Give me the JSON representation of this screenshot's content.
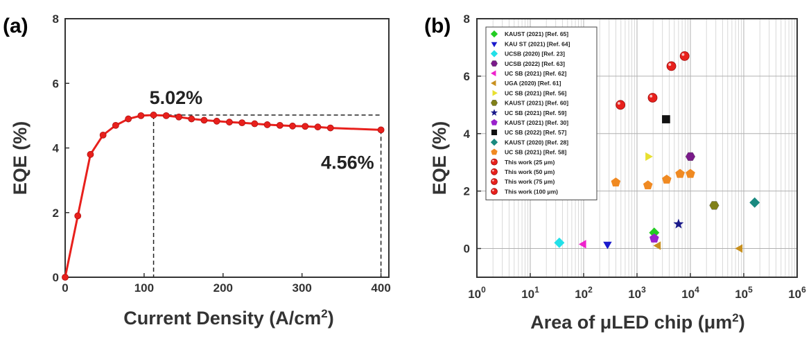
{
  "chart_data": [
    {
      "type": "line",
      "panel_label": "(a)",
      "xlabel": "Current Density (A/cm",
      "xlabel_sup": "2",
      "xlabel_end": ")",
      "ylabel": "EQE (%)",
      "xlim": [
        0,
        410
      ],
      "ylim": [
        0,
        8
      ],
      "xticks": [
        "0",
        "100",
        "200",
        "300",
        "400"
      ],
      "yticks": [
        "0",
        "2",
        "4",
        "6",
        "8"
      ],
      "grid": false,
      "color": "#e8201c",
      "series": [
        {
          "x": [
            0,
            16,
            32,
            48,
            64,
            80,
            96,
            112,
            128,
            144,
            160,
            176,
            192,
            208,
            224,
            240,
            256,
            272,
            288,
            304,
            320,
            336,
            400
          ],
          "y": [
            0.0,
            1.9,
            3.8,
            4.4,
            4.7,
            4.9,
            5.0,
            5.02,
            5.0,
            4.96,
            4.9,
            4.86,
            4.83,
            4.8,
            4.78,
            4.75,
            4.72,
            4.7,
            4.68,
            4.67,
            4.65,
            4.62,
            4.56
          ]
        }
      ],
      "annotations": [
        {
          "text": "5.02%",
          "x": 112,
          "y": 5.02
        },
        {
          "text": "4.56%",
          "x": 400,
          "y": 4.56
        }
      ]
    },
    {
      "type": "scatter",
      "panel_label": "(b)",
      "xlabel": "Area of μLED chip (μm",
      "xlabel_sup": "2",
      "xlabel_end": ")",
      "ylabel": "EQE (%)",
      "xscale": "log",
      "xlim": [
        1,
        1000000
      ],
      "ylim": [
        -1,
        8
      ],
      "xticks": [
        {
          "base": "10",
          "exp": "0"
        },
        {
          "base": "10",
          "exp": "1"
        },
        {
          "base": "10",
          "exp": "2"
        },
        {
          "base": "10",
          "exp": "3"
        },
        {
          "base": "10",
          "exp": "4"
        },
        {
          "base": "10",
          "exp": "5"
        },
        {
          "base": "10",
          "exp": "6"
        }
      ],
      "yticks": [
        "0",
        "2",
        "4",
        "6",
        "8"
      ],
      "grid": true,
      "legend_position": "top-left",
      "series": [
        {
          "name": "KAUST (2021)",
          "ref": "[Ref. 65]",
          "marker": "diamond",
          "color": "#22cc22",
          "points": [
            {
              "x": 2100,
              "y": 0.55
            }
          ]
        },
        {
          "name": "KAU ST (2021)",
          "ref": "[Ref. 64]",
          "marker": "triangle-down",
          "color": "#1a1acc",
          "points": [
            {
              "x": 280,
              "y": 0.15
            }
          ]
        },
        {
          "name": "UCSB (2020)",
          "ref": "[Ref. 23]",
          "marker": "diamond",
          "color": "#22e0e8",
          "points": [
            {
              "x": 35,
              "y": 0.2
            }
          ]
        },
        {
          "name": "UCSB (2022)",
          "ref": "[Ref. 63]",
          "marker": "hexagon",
          "color": "#7a1a8a",
          "points": [
            {
              "x": 10000,
              "y": 3.2
            }
          ]
        },
        {
          "name": "UC SB (2021)",
          "ref": "[Ref. 62]",
          "marker": "triangle-left",
          "color": "#ee22cc",
          "points": [
            {
              "x": 100,
              "y": 0.15
            }
          ]
        },
        {
          "name": "UGA (2020)",
          "ref": "[Ref. 61]",
          "marker": "triangle-left",
          "color": "#c8901e",
          "points": [
            {
              "x": 2500,
              "y": 0.1
            },
            {
              "x": 85000,
              "y": 0.0
            }
          ]
        },
        {
          "name": "UC SB (2021)",
          "ref": "[Ref. 56]",
          "marker": "triangle-right",
          "color": "#e8e030",
          "points": [
            {
              "x": 1600,
              "y": 3.2
            }
          ]
        },
        {
          "name": "KAUST (2021)",
          "ref": "[Ref. 60]",
          "marker": "hexagon",
          "color": "#808018",
          "points": [
            {
              "x": 28000,
              "y": 1.5
            }
          ]
        },
        {
          "name": "UC SB (2021)",
          "ref": "[Ref. 59]",
          "marker": "star",
          "color": "#1a1a8a",
          "points": [
            {
              "x": 6000,
              "y": 0.85
            }
          ]
        },
        {
          "name": "KAUST (2021)",
          "ref": "[Ref. 30]",
          "marker": "pentagon",
          "color": "#9a22cc",
          "points": [
            {
              "x": 2100,
              "y": 0.35
            }
          ]
        },
        {
          "name": "UC SB (2022)",
          "ref": "[Ref. 57]",
          "marker": "square",
          "color": "#111111",
          "points": [
            {
              "x": 3500,
              "y": 4.5
            }
          ]
        },
        {
          "name": "KAUST (2020)",
          "ref": "[Ref. 28]",
          "marker": "diamond",
          "color": "#1a8a80",
          "points": [
            {
              "x": 160000,
              "y": 1.6
            }
          ]
        },
        {
          "name": "UC SB (2021)",
          "ref": "[Ref. 58]",
          "marker": "pentagon",
          "color": "#f08a22",
          "points": [
            {
              "x": 400,
              "y": 2.3
            },
            {
              "x": 1600,
              "y": 2.2
            },
            {
              "x": 3600,
              "y": 2.4
            },
            {
              "x": 6400,
              "y": 2.6
            },
            {
              "x": 10000,
              "y": 2.6
            }
          ]
        },
        {
          "name": "This work (25 μm)",
          "ref": "",
          "marker": "circle",
          "color": "#e8201c",
          "points": [
            {
              "x": 490,
              "y": 5.0
            }
          ]
        },
        {
          "name": "This work (50 μm)",
          "ref": "",
          "marker": "circle",
          "color": "#e8201c",
          "points": [
            {
              "x": 1960,
              "y": 5.25
            }
          ]
        },
        {
          "name": "This work (75 μm)",
          "ref": "",
          "marker": "circle",
          "color": "#e8201c",
          "points": [
            {
              "x": 4400,
              "y": 6.35
            }
          ]
        },
        {
          "name": "This work (100 μm)",
          "ref": "",
          "marker": "circle",
          "color": "#e8201c",
          "points": [
            {
              "x": 7800,
              "y": 6.7
            }
          ]
        }
      ]
    }
  ]
}
